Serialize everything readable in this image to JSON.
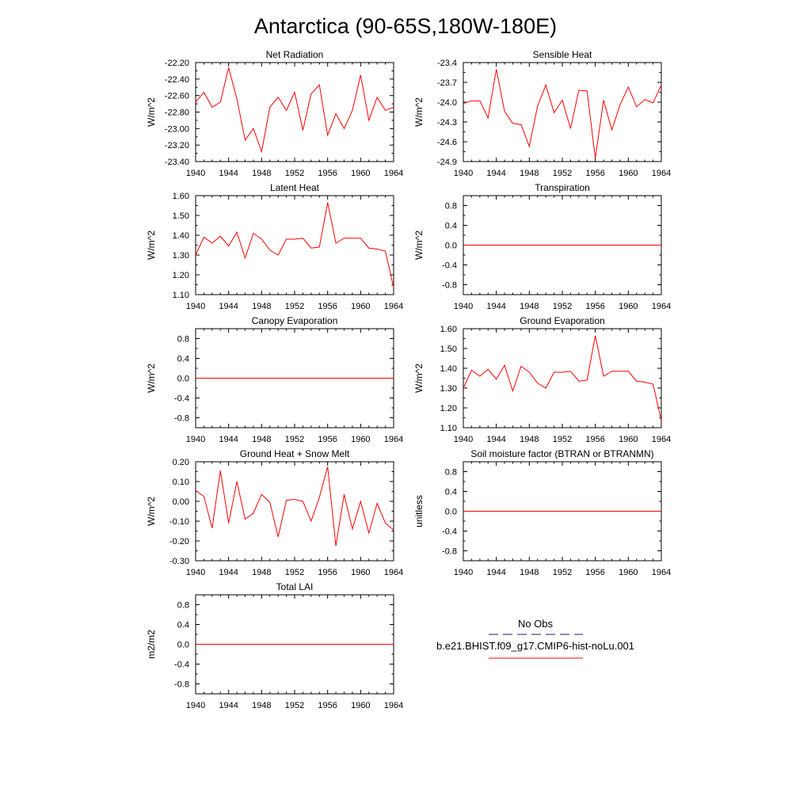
{
  "title": "Antarctica (90-65S,180W-180E)",
  "colors": {
    "series": "#ff0000",
    "obs": "#4b4b8f",
    "axis": "#000000"
  },
  "legend": {
    "obs_label": "No Obs",
    "case_label": "b.e21.BHIST.f09_g17.CMIP6-hist-noLu.001"
  },
  "chart_data": [
    {
      "type": "line",
      "title": "Net Radiation",
      "ylabel": "W/m^2",
      "x": [
        1940,
        1941,
        1942,
        1943,
        1944,
        1945,
        1946,
        1947,
        1948,
        1949,
        1950,
        1951,
        1952,
        1953,
        1954,
        1955,
        1956,
        1957,
        1958,
        1959,
        1960,
        1961,
        1962,
        1963,
        1964
      ],
      "values": [
        -22.68,
        -22.56,
        -22.74,
        -22.68,
        -22.26,
        -22.64,
        -23.14,
        -23.0,
        -23.28,
        -22.74,
        -22.62,
        -22.78,
        -22.56,
        -23.02,
        -22.58,
        -22.47,
        -23.08,
        -22.82,
        -23.0,
        -22.78,
        -22.35,
        -22.9,
        -22.62,
        -22.78,
        -22.74
      ],
      "xlim": [
        1940,
        1964
      ],
      "ylim": [
        -23.4,
        -22.2
      ],
      "xticks": [
        "1940",
        "1944",
        "1948",
        "1952",
        "1956",
        "1960",
        "1964"
      ],
      "yticks": [
        "-22.20",
        "-22.40",
        "-22.60",
        "-22.80",
        "-23.00",
        "-23.20",
        "-23.40"
      ],
      "grid": false
    },
    {
      "type": "line",
      "title": "Sensible Heat",
      "ylabel": "W/m^2",
      "x": [
        1940,
        1941,
        1942,
        1943,
        1944,
        1945,
        1946,
        1947,
        1948,
        1949,
        1950,
        1951,
        1952,
        1953,
        1954,
        1955,
        1956,
        1957,
        1958,
        1959,
        1960,
        1961,
        1962,
        1963,
        1964
      ],
      "values": [
        -24.02,
        -23.98,
        -23.98,
        -24.24,
        -23.5,
        -24.14,
        -24.32,
        -24.34,
        -24.67,
        -24.06,
        -23.74,
        -24.16,
        -23.97,
        -24.4,
        -23.82,
        -23.83,
        -24.85,
        -23.97,
        -24.42,
        -24.04,
        -23.77,
        -24.07,
        -23.96,
        -24.01,
        -23.74
      ],
      "xlim": [
        1940,
        1964
      ],
      "ylim": [
        -24.9,
        -23.4
      ],
      "xticks": [
        "1940",
        "1944",
        "1948",
        "1952",
        "1956",
        "1960",
        "1964"
      ],
      "yticks": [
        "-23.4",
        "-23.7",
        "-24.0",
        "-24.3",
        "-24.6",
        "-24.9"
      ],
      "grid": false
    },
    {
      "type": "line",
      "title": "Latent Heat",
      "ylabel": "W/m^2",
      "x": [
        1940,
        1941,
        1942,
        1943,
        1944,
        1945,
        1946,
        1947,
        1948,
        1949,
        1950,
        1951,
        1952,
        1953,
        1954,
        1955,
        1956,
        1957,
        1958,
        1959,
        1960,
        1961,
        1962,
        1963,
        1964
      ],
      "values": [
        1.3,
        1.39,
        1.36,
        1.395,
        1.345,
        1.415,
        1.285,
        1.41,
        1.38,
        1.325,
        1.3,
        1.38,
        1.38,
        1.385,
        1.335,
        1.34,
        1.565,
        1.36,
        1.385,
        1.385,
        1.385,
        1.335,
        1.33,
        1.32,
        1.135
      ],
      "xlim": [
        1940,
        1964
      ],
      "ylim": [
        1.1,
        1.6
      ],
      "xticks": [
        "1940",
        "1944",
        "1948",
        "1952",
        "1956",
        "1960",
        "1964"
      ],
      "yticks": [
        "1.60",
        "1.50",
        "1.40",
        "1.30",
        "1.20",
        "1.10"
      ],
      "grid": false
    },
    {
      "type": "line",
      "title": "Transpiration",
      "ylabel": "W/m^2",
      "x": [
        1940,
        1964
      ],
      "values": [
        0.0,
        0.0
      ],
      "xlim": [
        1940,
        1964
      ],
      "ylim": [
        -1.0,
        1.0
      ],
      "xticks": [
        "1940",
        "1944",
        "1948",
        "1952",
        "1956",
        "1960",
        "1964"
      ],
      "yticks": [
        "0.8",
        "0.4",
        "0.0",
        "-0.4",
        "-0.8"
      ],
      "grid": false
    },
    {
      "type": "line",
      "title": "Canopy Evaporation",
      "ylabel": "W/m^2",
      "x": [
        1940,
        1964
      ],
      "values": [
        0.0,
        0.0
      ],
      "xlim": [
        1940,
        1964
      ],
      "ylim": [
        -1.0,
        1.0
      ],
      "xticks": [
        "1940",
        "1944",
        "1948",
        "1952",
        "1956",
        "1960",
        "1964"
      ],
      "yticks": [
        "0.8",
        "0.4",
        "0.0",
        "-0.4",
        "-0.8"
      ],
      "grid": false
    },
    {
      "type": "line",
      "title": "Ground Evaporation",
      "ylabel": "W/m^2",
      "x": [
        1940,
        1941,
        1942,
        1943,
        1944,
        1945,
        1946,
        1947,
        1948,
        1949,
        1950,
        1951,
        1952,
        1953,
        1954,
        1955,
        1956,
        1957,
        1958,
        1959,
        1960,
        1961,
        1962,
        1963,
        1964
      ],
      "values": [
        1.3,
        1.39,
        1.36,
        1.395,
        1.345,
        1.415,
        1.285,
        1.41,
        1.38,
        1.325,
        1.3,
        1.38,
        1.38,
        1.385,
        1.335,
        1.34,
        1.565,
        1.36,
        1.385,
        1.385,
        1.385,
        1.335,
        1.33,
        1.32,
        1.135
      ],
      "xlim": [
        1940,
        1964
      ],
      "ylim": [
        1.1,
        1.6
      ],
      "xticks": [
        "1940",
        "1944",
        "1948",
        "1952",
        "1956",
        "1960",
        "1964"
      ],
      "yticks": [
        "1.60",
        "1.50",
        "1.40",
        "1.30",
        "1.20",
        "1.10"
      ],
      "grid": false
    },
    {
      "type": "line",
      "title": "Ground Heat + Snow Melt",
      "ylabel": "W/m^2",
      "x": [
        1940,
        1941,
        1942,
        1943,
        1944,
        1945,
        1946,
        1947,
        1948,
        1949,
        1950,
        1951,
        1952,
        1953,
        1954,
        1955,
        1956,
        1957,
        1958,
        1959,
        1960,
        1961,
        1962,
        1963,
        1964
      ],
      "values": [
        0.055,
        0.025,
        -0.135,
        0.155,
        -0.11,
        0.1,
        -0.09,
        -0.06,
        0.035,
        -0.005,
        -0.18,
        0.005,
        0.01,
        0.0,
        -0.1,
        0.02,
        0.175,
        -0.225,
        0.035,
        -0.14,
        0.0,
        -0.16,
        -0.01,
        -0.11,
        -0.145
      ],
      "xlim": [
        1940,
        1964
      ],
      "ylim": [
        -0.3,
        0.2
      ],
      "xticks": [
        "1940",
        "1944",
        "1948",
        "1952",
        "1956",
        "1960",
        "1964"
      ],
      "yticks": [
        "0.20",
        "0.10",
        "0.00",
        "-0.10",
        "-0.20",
        "-0.30"
      ],
      "grid": false
    },
    {
      "type": "line",
      "title": "Soil moisture factor (BTRAN or BTRANMN)",
      "ylabel": "unitless",
      "x": [
        1940,
        1964
      ],
      "values": [
        0.0,
        0.0
      ],
      "xlim": [
        1940,
        1964
      ],
      "ylim": [
        -1.0,
        1.0
      ],
      "xticks": [
        "1940",
        "1944",
        "1948",
        "1952",
        "1956",
        "1960",
        "1964"
      ],
      "yticks": [
        "0.8",
        "0.4",
        "0.0",
        "-0.4",
        "-0.8"
      ],
      "grid": false
    },
    {
      "type": "line",
      "title": "Total LAI",
      "ylabel": "m2/m2",
      "x": [
        1940,
        1964
      ],
      "values": [
        0.0,
        0.0
      ],
      "xlim": [
        1940,
        1964
      ],
      "ylim": [
        -1.0,
        1.0
      ],
      "xticks": [
        "1940",
        "1944",
        "1948",
        "1952",
        "1956",
        "1960",
        "1964"
      ],
      "yticks": [
        "0.8",
        "0.4",
        "0.0",
        "-0.4",
        "-0.8"
      ],
      "grid": false
    }
  ]
}
